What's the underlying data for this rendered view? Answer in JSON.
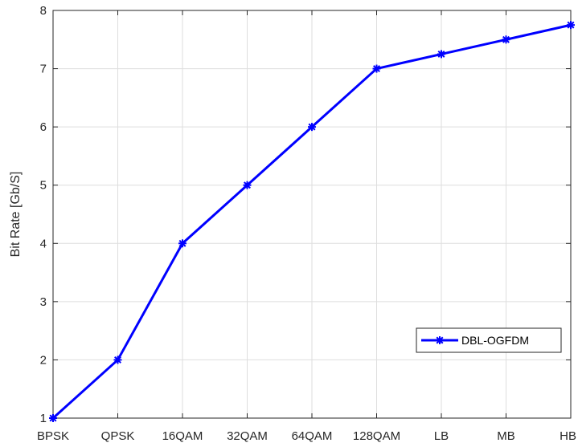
{
  "chart_data": {
    "type": "line",
    "title": "",
    "xlabel": "",
    "ylabel": "Bit Rate [Gb/S]",
    "categories": [
      "BPSK",
      "QPSK",
      "16QAM",
      "32QAM",
      "64QAM",
      "128QAM",
      "LB",
      "MB",
      "HB"
    ],
    "ylim": [
      1,
      8
    ],
    "yticks": [
      1,
      2,
      3,
      4,
      5,
      6,
      7,
      8
    ],
    "grid": true,
    "legend_position": "bottom-right",
    "series": [
      {
        "name": "DBL-OGFDM",
        "values": [
          1,
          2,
          4,
          5,
          6,
          7,
          7.25,
          7.5,
          7.75
        ],
        "color": "#0000ff",
        "marker": "asterisk"
      }
    ]
  }
}
